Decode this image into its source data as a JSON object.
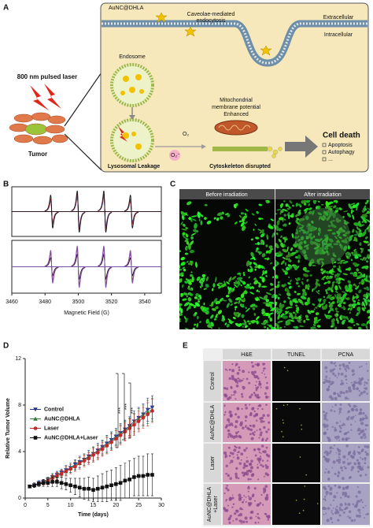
{
  "panel_labels": [
    "A",
    "B",
    "C",
    "D",
    "E"
  ],
  "panel_a": {
    "nanocluster": "AuNC@DHLA",
    "endocytosis": [
      "Caveolae-mediated",
      "endocytosis"
    ],
    "extracellular": "Extracellular",
    "intracellular": "Intracellular",
    "endosome": "Endosome",
    "laser": "800 nm pulsed laser",
    "tumor": "Tumor",
    "oxygen": "O₂",
    "superoxide": "O₂⁻",
    "mitochondria": [
      "Mitochondrial",
      "membrane potential",
      "Enhanced"
    ],
    "leakage": "Lysosomal Leakage",
    "cytoskeleton": "Cytoskeleton disrupted",
    "cell_death": "Cell death",
    "outcomes": [
      "Apoptosis",
      "Autophagy",
      "..."
    ]
  },
  "panel_c": {
    "headers": [
      "Before irradiation",
      "After irradiation"
    ]
  },
  "panel_e": {
    "columns": [
      "H&E",
      "TUNEL",
      "PCNA"
    ],
    "rows": [
      [
        "Control"
      ],
      [
        "AuNC@DHLA"
      ],
      [
        "Laser"
      ],
      [
        "AuNC@DHLA",
        "+Laser"
      ]
    ]
  },
  "chart_data": [
    {
      "type": "epr",
      "xlabel": "Magnetic Field (G)",
      "xlim": [
        3460,
        3550
      ],
      "xticks": [
        3460,
        3480,
        3500,
        3520,
        3540
      ],
      "subplots": [
        {
          "series": [
            {
              "color": "#8a4fa8",
              "x": [
                3484,
                3500,
                3516,
                3532
              ],
              "values": [
                0.5,
                0.7,
                0.7,
                0.5
              ]
            },
            {
              "color": "#3a5fc8",
              "x": [
                3484,
                3500,
                3516,
                3532
              ],
              "values": [
                0.55,
                0.75,
                0.75,
                0.55
              ]
            },
            {
              "color": "#d03030",
              "x": [
                3484,
                3500,
                3516,
                3532
              ],
              "values": [
                0.6,
                0.85,
                0.85,
                0.6
              ]
            },
            {
              "color": "#111111",
              "x": [
                3484,
                3500,
                3516,
                3532
              ],
              "values": [
                0.8,
                1.0,
                1.0,
                0.8
              ]
            }
          ]
        },
        {
          "series": [
            {
              "color": "#111111",
              "x": [
                3484,
                3500,
                3516,
                3532
              ],
              "values": [
                0.4,
                0.55,
                0.55,
                0.4
              ]
            },
            {
              "color": "#d03030",
              "x": [
                3484,
                3500,
                3516,
                3532
              ],
              "values": [
                0.6,
                0.8,
                0.8,
                0.6
              ]
            },
            {
              "color": "#3a5fc8",
              "x": [
                3484,
                3500,
                3516,
                3532
              ],
              "values": [
                0.7,
                0.9,
                0.9,
                0.7
              ]
            },
            {
              "color": "#8a4fa8",
              "x": [
                3484,
                3500,
                3516,
                3532
              ],
              "values": [
                0.75,
                0.95,
                0.95,
                0.75
              ]
            }
          ]
        }
      ]
    },
    {
      "type": "line",
      "xlabel": "Time (days)",
      "ylabel": "Relative Tumor Volume",
      "xlim": [
        0,
        30
      ],
      "xticks": [
        0,
        5,
        10,
        15,
        20,
        25,
        30
      ],
      "ylim": [
        0,
        12
      ],
      "yticks": [
        0,
        4,
        8,
        12
      ],
      "legend": "center left",
      "significance": [
        "***",
        "***",
        "***"
      ],
      "x": [
        1,
        2,
        3,
        4,
        5,
        6,
        7,
        8,
        9,
        10,
        11,
        12,
        13,
        14,
        15,
        16,
        17,
        18,
        19,
        20,
        21,
        22,
        23,
        24,
        25,
        26,
        27,
        28
      ],
      "series": [
        {
          "name": "Control",
          "color": "#27358a",
          "marker": "triangle-down",
          "values": [
            1.0,
            1.1,
            1.3,
            1.4,
            1.6,
            1.8,
            2.0,
            2.2,
            2.4,
            2.6,
            2.9,
            3.1,
            3.3,
            3.6,
            3.8,
            4.1,
            4.4,
            4.7,
            5.0,
            5.3,
            5.6,
            5.9,
            6.2,
            6.6,
            6.9,
            7.2,
            7.6,
            7.8
          ],
          "errors": [
            0.1,
            0.1,
            0.2,
            0.2,
            0.2,
            0.3,
            0.3,
            0.3,
            0.4,
            0.4,
            0.4,
            0.5,
            0.5,
            0.5,
            0.6,
            0.6,
            0.6,
            0.7,
            0.7,
            0.7,
            0.8,
            0.8,
            0.8,
            0.9,
            0.9,
            0.9,
            1.0,
            1.0
          ]
        },
        {
          "name": "AuNC@DHLA",
          "color": "#2e7d32",
          "marker": "triangle-up",
          "values": [
            1.0,
            1.1,
            1.2,
            1.4,
            1.6,
            1.8,
            1.9,
            2.1,
            2.3,
            2.6,
            2.8,
            3.0,
            3.3,
            3.5,
            3.8,
            4.0,
            4.3,
            4.6,
            4.9,
            5.2,
            5.5,
            5.8,
            6.1,
            6.4,
            6.8,
            7.1,
            7.4,
            7.6
          ],
          "errors": [
            0.1,
            0.1,
            0.2,
            0.2,
            0.2,
            0.3,
            0.3,
            0.3,
            0.4,
            0.4,
            0.4,
            0.5,
            0.5,
            0.5,
            0.6,
            0.6,
            0.6,
            0.7,
            0.7,
            0.7,
            0.8,
            0.8,
            0.8,
            0.9,
            0.9,
            0.9,
            1.0,
            1.0
          ]
        },
        {
          "name": "Laser",
          "color": "#c62828",
          "marker": "circle",
          "values": [
            1.0,
            1.1,
            1.2,
            1.3,
            1.5,
            1.7,
            1.9,
            2.1,
            2.3,
            2.5,
            2.7,
            3.0,
            3.2,
            3.4,
            3.7,
            3.9,
            4.2,
            4.5,
            4.8,
            5.1,
            5.4,
            5.7,
            6.0,
            6.3,
            6.6,
            6.9,
            7.2,
            7.5
          ],
          "errors": [
            0.1,
            0.1,
            0.2,
            0.2,
            0.2,
            0.3,
            0.3,
            0.3,
            0.4,
            0.4,
            0.4,
            0.5,
            0.5,
            0.5,
            0.6,
            0.6,
            0.6,
            0.7,
            0.7,
            0.7,
            0.8,
            0.8,
            0.8,
            0.9,
            0.9,
            0.9,
            1.0,
            1.0
          ]
        },
        {
          "name": "AuNC@DHLA+Laser",
          "color": "#111111",
          "marker": "square",
          "values": [
            1.0,
            1.1,
            1.2,
            1.3,
            1.3,
            1.4,
            1.4,
            1.3,
            1.2,
            1.1,
            1.0,
            0.9,
            0.8,
            0.8,
            0.7,
            0.8,
            0.9,
            1.0,
            1.1,
            1.2,
            1.3,
            1.5,
            1.6,
            1.8,
            1.9,
            1.9,
            2.0,
            2.0
          ],
          "errors": [
            0.1,
            0.2,
            0.2,
            0.3,
            0.3,
            0.4,
            0.4,
            0.5,
            0.5,
            0.6,
            0.7,
            0.8,
            0.9,
            1.0,
            1.0,
            1.1,
            1.2,
            1.3,
            1.3,
            1.4,
            1.5,
            1.5,
            1.6,
            1.6,
            1.7,
            1.7,
            1.8,
            1.8
          ]
        }
      ]
    }
  ]
}
